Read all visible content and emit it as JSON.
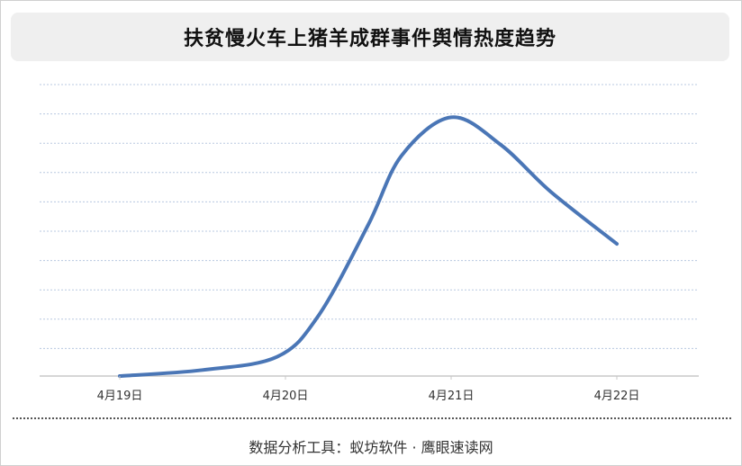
{
  "chart_data": {
    "type": "line",
    "title": "扶贫慢火车上猪羊成群事件舆情热度趋势",
    "categories": [
      "4月19日",
      "4月20日",
      "4月21日",
      "4月22日"
    ],
    "series": [
      {
        "color": "#4a76b6",
        "points": [
          {
            "x": 0.0,
            "y": 0.0
          },
          {
            "x": 0.5,
            "y": 2.2
          },
          {
            "x": 0.95,
            "y": 7.0
          },
          {
            "x": 1.2,
            "y": 22.0
          },
          {
            "x": 1.5,
            "y": 55.0
          },
          {
            "x": 1.7,
            "y": 80.0
          },
          {
            "x": 2.0,
            "y": 94.0
          },
          {
            "x": 2.3,
            "y": 84.0
          },
          {
            "x": 2.6,
            "y": 67.0
          },
          {
            "x": 3.0,
            "y": 48.0
          }
        ]
      }
    ],
    "ylim": [
      0,
      100
    ],
    "grid": true,
    "xlabel": "",
    "ylabel": ""
  },
  "footer": {
    "text": "数据分析工具：蚁坊软件 · 鹰眼速读网"
  }
}
